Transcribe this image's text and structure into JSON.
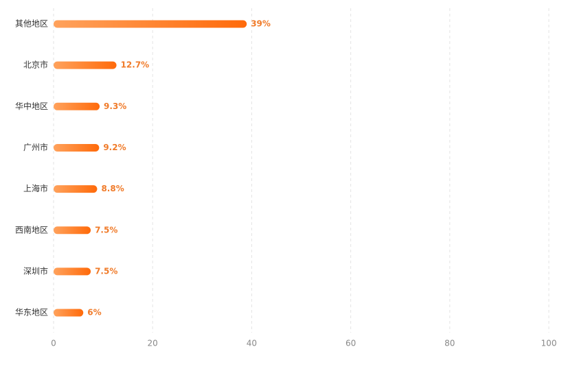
{
  "chart_data": {
    "type": "bar",
    "orientation": "horizontal",
    "categories": [
      "其他地区",
      "北京市",
      "华中地区",
      "广州市",
      "上海市",
      "西南地区",
      "深圳市",
      "华东地区"
    ],
    "values": [
      39,
      12.7,
      9.3,
      9.2,
      8.8,
      7.5,
      7.5,
      6
    ],
    "value_labels": [
      "39%",
      "12.7%",
      "9.3%",
      "9.2%",
      "8.8%",
      "7.5%",
      "7.5%",
      "6%"
    ],
    "colors": [
      "#ffa25c",
      "#ff6a0a"
    ],
    "xlim": [
      0,
      100
    ],
    "xticks": [
      0,
      20,
      40,
      60,
      80,
      100
    ],
    "grid": true
  }
}
